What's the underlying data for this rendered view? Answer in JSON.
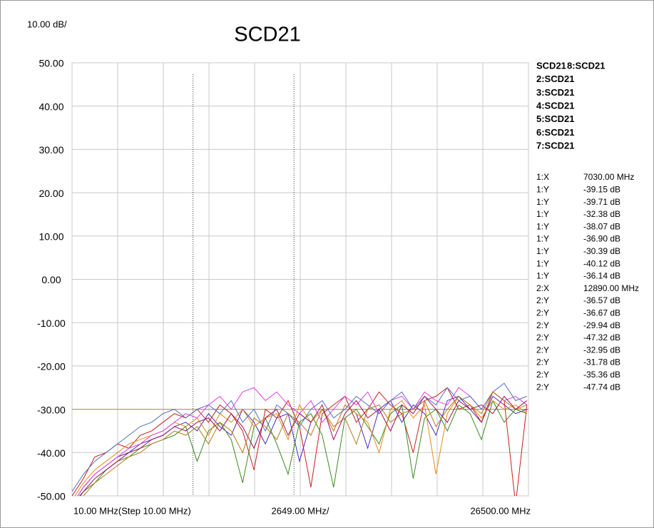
{
  "chart_data": {
    "type": "line",
    "title": "SCD21",
    "scale_label": "10.00 dB/",
    "x_labels": [
      {
        "value": 10,
        "label": "10.00 MHz(Step 10.00 MHz)"
      },
      {
        "value": 13255,
        "label": "2649.00 MHz/"
      },
      {
        "value": 26500,
        "label": "26500.00 MHz"
      }
    ],
    "xlim": [
      10,
      26500
    ],
    "xticks": [
      10,
      2659,
      5308,
      7957,
      10606,
      13255,
      15904,
      18553,
      21202,
      23851,
      26500
    ],
    "ylim": [
      -50,
      50
    ],
    "yticks": [
      {
        "value": 50,
        "label": "50.00"
      },
      {
        "value": 40,
        "label": "40.00"
      },
      {
        "value": 30,
        "label": "30.00"
      },
      {
        "value": 20,
        "label": "20.00"
      },
      {
        "value": 10,
        "label": "10.00"
      },
      {
        "value": 0,
        "label": "0.00"
      },
      {
        "value": -10,
        "label": "-10.00"
      },
      {
        "value": -20,
        "label": "-20.00"
      },
      {
        "value": -30,
        "label": "-30.00"
      },
      {
        "value": -40,
        "label": "-40.00"
      },
      {
        "value": -50,
        "label": "-50.00"
      }
    ],
    "grid": true,
    "reference_level": -30,
    "reference_color": "#a09a40",
    "marker_x": [
      7030,
      12890
    ],
    "x": [
      10,
      670,
      1330,
      1990,
      2650,
      3310,
      3970,
      4630,
      5290,
      5950,
      6610,
      7270,
      7930,
      8590,
      9250,
      9910,
      10570,
      11230,
      11890,
      12550,
      13210,
      13870,
      14530,
      15190,
      15850,
      16510,
      17170,
      17830,
      18490,
      19150,
      19810,
      20470,
      21130,
      21790,
      22450,
      23110,
      23770,
      24430,
      25090,
      25750,
      26410
    ],
    "series": [
      {
        "name": "SCD21",
        "color": "#4a2bc0",
        "values": [
          -52,
          -48,
          -45,
          -43,
          -41,
          -40,
          -38,
          -37,
          -36,
          -34,
          -33,
          -35,
          -31,
          -34,
          -36,
          -30,
          -33,
          -38,
          -32,
          -31,
          -42,
          -33,
          -30,
          -35,
          -29,
          -31,
          -39,
          -30,
          -28,
          -33,
          -29,
          -31,
          -36,
          -28,
          -27,
          -30,
          -33,
          -27,
          -29,
          -31,
          -30
        ]
      },
      {
        "name": "2:SCD21",
        "color": "#c81e1e",
        "values": [
          -50,
          -46,
          -41,
          -40,
          -38,
          -39,
          -36,
          -35,
          -33,
          -31,
          -32,
          -30,
          -33,
          -29,
          -31,
          -35,
          -44,
          -30,
          -32,
          -28,
          -34,
          -48,
          -31,
          -29,
          -27,
          -33,
          -30,
          -26,
          -29,
          -31,
          -40,
          -28,
          -27,
          -25,
          -30,
          -29,
          -33,
          -26,
          -28,
          -52,
          -29
        ]
      },
      {
        "name": "3:SCD21",
        "color": "#3a8a1e",
        "values": [
          -53,
          -49,
          -47,
          -44,
          -42,
          -41,
          -39,
          -38,
          -37,
          -36,
          -34,
          -42,
          -35,
          -33,
          -37,
          -47,
          -34,
          -32,
          -38,
          -45,
          -33,
          -31,
          -36,
          -48,
          -32,
          -30,
          -34,
          -38,
          -31,
          -29,
          -46,
          -32,
          -30,
          -35,
          -29,
          -31,
          -37,
          -28,
          -33,
          -30,
          -31
        ]
      },
      {
        "name": "4:SCD21",
        "color": "#e88a1a",
        "values": [
          -51,
          -47,
          -44,
          -42,
          -40,
          -38,
          -37,
          -36,
          -35,
          -33,
          -34,
          -32,
          -36,
          -31,
          -33,
          -30,
          -34,
          -32,
          -31,
          -37,
          -29,
          -33,
          -30,
          -35,
          -29,
          -31,
          -33,
          -40,
          -30,
          -28,
          -32,
          -29,
          -45,
          -31,
          -27,
          -29,
          -32,
          -28,
          -30,
          -29,
          -31
        ]
      },
      {
        "name": "5:SCD21",
        "color": "#e040e0",
        "values": [
          -52,
          -48,
          -45,
          -43,
          -41,
          -39,
          -38,
          -36,
          -35,
          -33,
          -31,
          -32,
          -29,
          -27,
          -30,
          -26,
          -25,
          -28,
          -26,
          -29,
          -31,
          -28,
          -33,
          -30,
          -27,
          -29,
          -26,
          -31,
          -28,
          -27,
          -30,
          -26,
          -28,
          -29,
          -25,
          -27,
          -30,
          -26,
          -28,
          -27,
          -29
        ]
      },
      {
        "name": "6:SCD21",
        "color": "#5070c0",
        "values": [
          -49,
          -45,
          -42,
          -40,
          -38,
          -36,
          -34,
          -33,
          -31,
          -30,
          -32,
          -30,
          -29,
          -31,
          -28,
          -33,
          -30,
          -35,
          -29,
          -31,
          -34,
          -30,
          -28,
          -32,
          -30,
          -27,
          -29,
          -31,
          -28,
          -26,
          -30,
          -27,
          -29,
          -25,
          -28,
          -27,
          -30,
          -26,
          -24,
          -28,
          -27
        ]
      },
      {
        "name": "7:SCD21",
        "color": "#b07a20",
        "values": [
          -53,
          -50,
          -47,
          -45,
          -43,
          -41,
          -40,
          -38,
          -37,
          -35,
          -36,
          -34,
          -38,
          -33,
          -35,
          -40,
          -32,
          -34,
          -37,
          -31,
          -33,
          -36,
          -30,
          -34,
          -32,
          -38,
          -30,
          -29,
          -33,
          -31,
          -30,
          -28,
          -34,
          -30,
          -27,
          -29,
          -31,
          -26,
          -28,
          -30,
          -29
        ]
      },
      {
        "name": "8:SCD21",
        "color": "#a0105a",
        "values": [
          -52,
          -49,
          -46,
          -44,
          -42,
          -40,
          -39,
          -37,
          -36,
          -34,
          -35,
          -33,
          -32,
          -35,
          -31,
          -34,
          -39,
          -32,
          -30,
          -36,
          -31,
          -33,
          -29,
          -37,
          -31,
          -28,
          -32,
          -30,
          -35,
          -29,
          -31,
          -27,
          -30,
          -33,
          -28,
          -30,
          -29,
          -31,
          -27,
          -30,
          -28
        ]
      }
    ],
    "marker_table": [
      {
        "label": "1:X",
        "value": "7030.00 MHz",
        "color": "#a05050"
      },
      {
        "label": "1:Y",
        "value": "-39.15 dB",
        "color": "#e88a1a"
      },
      {
        "label": "1:Y",
        "value": "-39.71 dB",
        "color": "#e040e0"
      },
      {
        "label": "1:Y",
        "value": "-32.38 dB",
        "color": "#5070c0"
      },
      {
        "label": "1:Y",
        "value": "-38.07 dB",
        "color": "#b07a20"
      },
      {
        "label": "1:Y",
        "value": "-36.90 dB",
        "color": "#a0105a"
      },
      {
        "label": "1:Y",
        "value": "-30.39 dB",
        "color": "#4a2bc0"
      },
      {
        "label": "1:Y",
        "value": "-40.12 dB",
        "color": "#c81e1e"
      },
      {
        "label": "1:Y",
        "value": "-36.14 dB",
        "color": "#3a8a1e"
      },
      {
        "label": "2:X",
        "value": "12890.00 MHz",
        "color": "#a05050"
      },
      {
        "label": "2:Y",
        "value": "-36.57 dB",
        "color": "#e88a1a"
      },
      {
        "label": "2:Y",
        "value": "-36.67 dB",
        "color": "#e040e0"
      },
      {
        "label": "2:Y",
        "value": "-29.94 dB",
        "color": "#5070c0"
      },
      {
        "label": "2:Y",
        "value": "-47.32 dB",
        "color": "#b07a20"
      },
      {
        "label": "2:Y",
        "value": "-32.95 dB",
        "color": "#a0105a"
      },
      {
        "label": "2:Y",
        "value": "-31.78 dB",
        "color": "#4a2bc0"
      },
      {
        "label": "2:Y",
        "value": "-35.36 dB",
        "color": "#c81e1e"
      },
      {
        "label": "2:Y",
        "value": "-47.74 dB",
        "color": "#3a8a1e"
      }
    ]
  }
}
